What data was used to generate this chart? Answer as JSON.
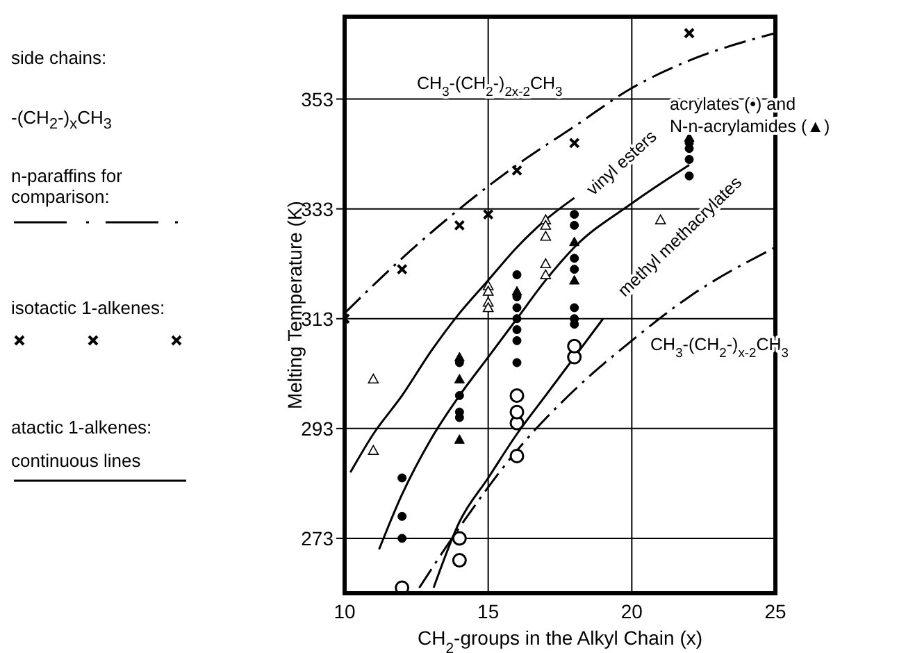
{
  "chart_data": {
    "type": "scatter",
    "xlabel": "CH$_{2}$-groups  in the Alkyl Chain  (x)",
    "ylabel": "Melting Temperature  (K)",
    "xlim": [
      10,
      25
    ],
    "xticks": [
      10,
      15,
      20,
      25
    ],
    "ylim": [
      263,
      368
    ],
    "yticks": [
      273,
      293,
      313,
      333,
      353
    ],
    "grid": true,
    "series": [
      {
        "marker": "cross",
        "color": "#000000",
        "x": [
          10,
          12,
          14,
          15,
          16,
          18,
          22
        ],
        "values": [
          313,
          322,
          330,
          332,
          340,
          345,
          365
        ]
      },
      {
        "type": "line",
        "line_style": "dashed",
        "marker": "none",
        "color": "#000000",
        "x": [
          10,
          12,
          14,
          16,
          18,
          20,
          22,
          25
        ],
        "values": [
          314,
          324,
          333,
          341,
          348,
          355,
          360,
          365
        ]
      },
      {
        "type": "line",
        "line_style": "dashed",
        "marker": "none",
        "color": "#000000",
        "x": [
          12.6,
          14,
          16,
          18,
          20,
          22,
          25
        ],
        "values": [
          264,
          275,
          289,
          300,
          309,
          317,
          326
        ]
      },
      {
        "type": "line",
        "line_style": "solid",
        "marker": "none",
        "color": "#000000",
        "x": [
          10.2,
          11,
          12,
          13,
          14,
          15,
          16,
          17,
          18
        ],
        "values": [
          285,
          292,
          299,
          307,
          314,
          320,
          326,
          331,
          335
        ]
      },
      {
        "type": "line",
        "line_style": "solid",
        "marker": "none",
        "color": "#000000",
        "x": [
          11.2,
          12,
          13,
          14,
          15,
          16,
          17,
          18,
          20,
          22
        ],
        "values": [
          271,
          281,
          291,
          299,
          306,
          313,
          320,
          326,
          334,
          341
        ]
      },
      {
        "type": "line",
        "line_style": "solid",
        "marker": "none",
        "color": "#000000",
        "x": [
          13.1,
          14,
          15,
          16,
          17,
          18,
          19
        ],
        "values": [
          264,
          276,
          284,
          292,
          299,
          306,
          313
        ]
      },
      {
        "type": "scatter",
        "marker": "circle",
        "color": "#ffffff",
        "x": [
          12,
          14,
          14,
          16,
          16,
          16,
          16,
          18,
          18
        ],
        "values": [
          264,
          273,
          269,
          288,
          294,
          296,
          299,
          306,
          308
        ]
      },
      {
        "type": "scatter",
        "marker": "circle",
        "color": "#000000",
        "x": [
          12,
          12,
          12,
          14,
          14,
          14,
          14,
          16,
          16,
          16,
          16,
          16,
          16,
          16,
          18,
          18,
          18,
          18,
          18,
          18,
          18,
          22,
          22,
          22,
          22
        ],
        "values": [
          284,
          277,
          273,
          295,
          296,
          299,
          305,
          305,
          309,
          311,
          313,
          315,
          317,
          321,
          332,
          330,
          324,
          322,
          315,
          313,
          312,
          344,
          342,
          339,
          345
        ]
      },
      {
        "type": "scatter",
        "marker": "triangle",
        "color": "#000000",
        "x": [
          14,
          14,
          14,
          16,
          18,
          18,
          22
        ],
        "values": [
          291,
          302,
          306,
          318,
          327,
          320,
          346
        ]
      },
      {
        "type": "scatter",
        "marker": "triangle",
        "color": "#ffffff",
        "x": [
          11,
          11,
          15,
          15,
          15,
          15,
          17,
          17,
          17,
          17,
          17,
          21
        ],
        "values": [
          302,
          289,
          319,
          318,
          316,
          315,
          331,
          330,
          328,
          323,
          321,
          331
        ]
      }
    ],
    "annotations": [
      "side chains:",
      "-(CH$_{2}$-)$_{x}$CH$_{3}$",
      "n-paraffins for comparison:",
      "isotactic 1-alkenes:",
      "atactic 1-alkenes:",
      "continuous lines",
      "CH$_{3}$-(CH$_{2}$-)$_{2x-2}$CH$_{3}$",
      "CH$_{3}$-(CH$_{2}$-)$_{x-2}$CH$_{3}$",
      "vinyl esters",
      "methyl methacrylates",
      "acrylates (•) and",
      "N-n-acrylamides (▲)"
    ]
  }
}
